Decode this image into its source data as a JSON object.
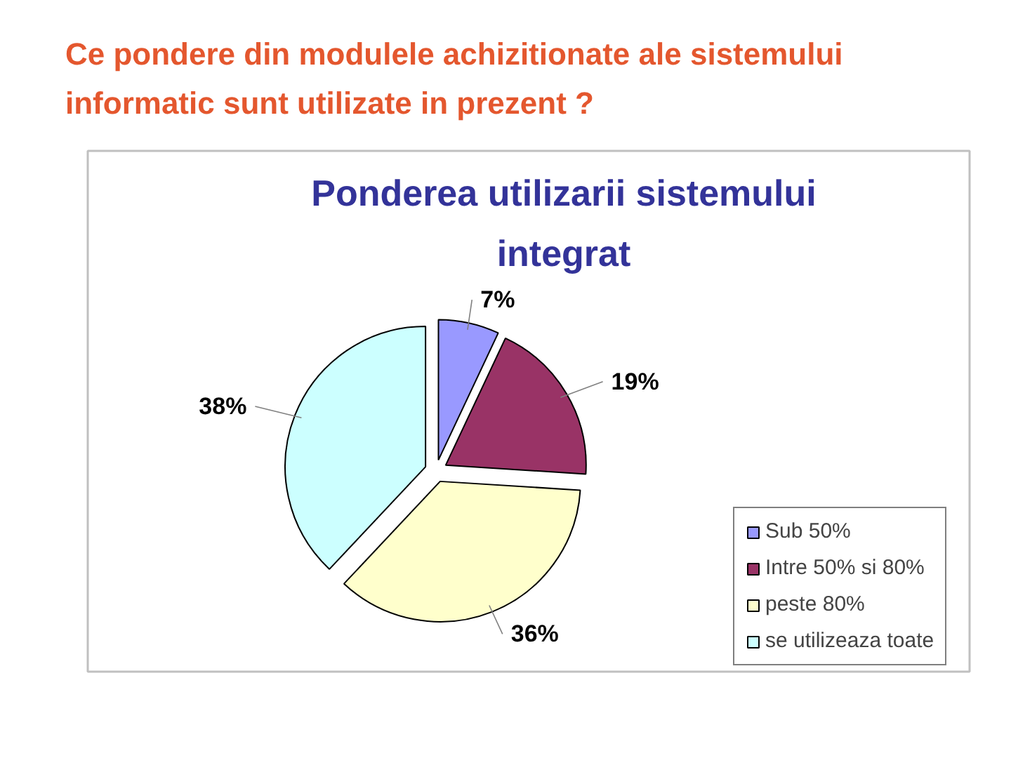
{
  "chart_data": {
    "type": "pie",
    "title": "Ce pondere din modulele achizitionate ale sistemului informatic sunt utilizate in prezent ?",
    "subtitle": "Ponderea utilizarii sistemului integrat",
    "categories": [
      "Sub 50%",
      "Intre 50% si 80%",
      "peste 80%",
      "se utilizeaza toate"
    ],
    "values": [
      7,
      19,
      36,
      38
    ],
    "colors": [
      "#9999ff",
      "#993366",
      "#ffffcc",
      "#ccffff"
    ],
    "value_labels": [
      "7%",
      "19%",
      "36%",
      "38%"
    ],
    "legend": "bottom right"
  }
}
